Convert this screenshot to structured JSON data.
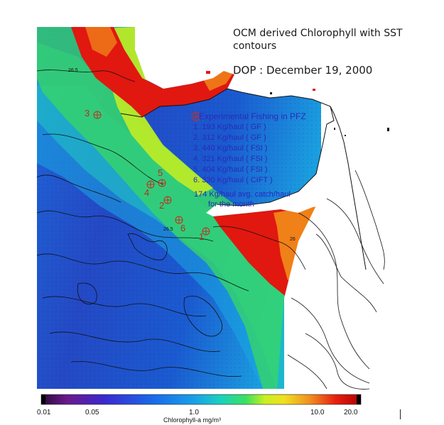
{
  "title": "OCM derived Chlorophyll with SST contours",
  "date_line": "DOP : December 19, 2000",
  "legend": {
    "heading": "Experimental Fishing in PFZ",
    "entries": [
      "1.  193 Kg/haul ( GF )",
      "2.  312 Kg/haul ( GF )",
      "3.  440 Kg/haul ( FSI )",
      "4.  321 Kg/haul ( FSI )",
      "5.  404 Kg/haul ( FSI )",
      "6.  330 Kg/haul ( CIFT )"
    ],
    "avg_line1": "174 Kg/haul avg. catch/haul",
    "avg_line2": "for the month"
  },
  "stations": [
    {
      "label": "1"
    },
    {
      "label": "2"
    },
    {
      "label": "3"
    },
    {
      "label": "4"
    },
    {
      "label": "5"
    },
    {
      "label": "6"
    }
  ],
  "contour_labels": [
    "26.5",
    "26.5",
    "26"
  ],
  "color_scale": {
    "ticks": [
      "0.01",
      "0.05",
      "1.0",
      "10.0",
      "20.0"
    ],
    "unit": "Chlorophyll-a mg/m³",
    "colors": [
      "#2a0a3a",
      "#6a1a8a",
      "#3a2ad0",
      "#1a6ae8",
      "#1aa0e8",
      "#1ad0c0",
      "#3ae060",
      "#c8f020",
      "#f0e020",
      "#f09020",
      "#e82010",
      "#b00000"
    ]
  },
  "colors": {
    "symbol": "#c03020",
    "legend_text": "#2a2ab8",
    "land": "#ffffff",
    "ocean_deep": "#2040c0",
    "ocean_mid": "#1a90e0",
    "coastal_green": "#40e060",
    "coastal_red": "#e01810",
    "coastal_orange": "#f08018"
  }
}
